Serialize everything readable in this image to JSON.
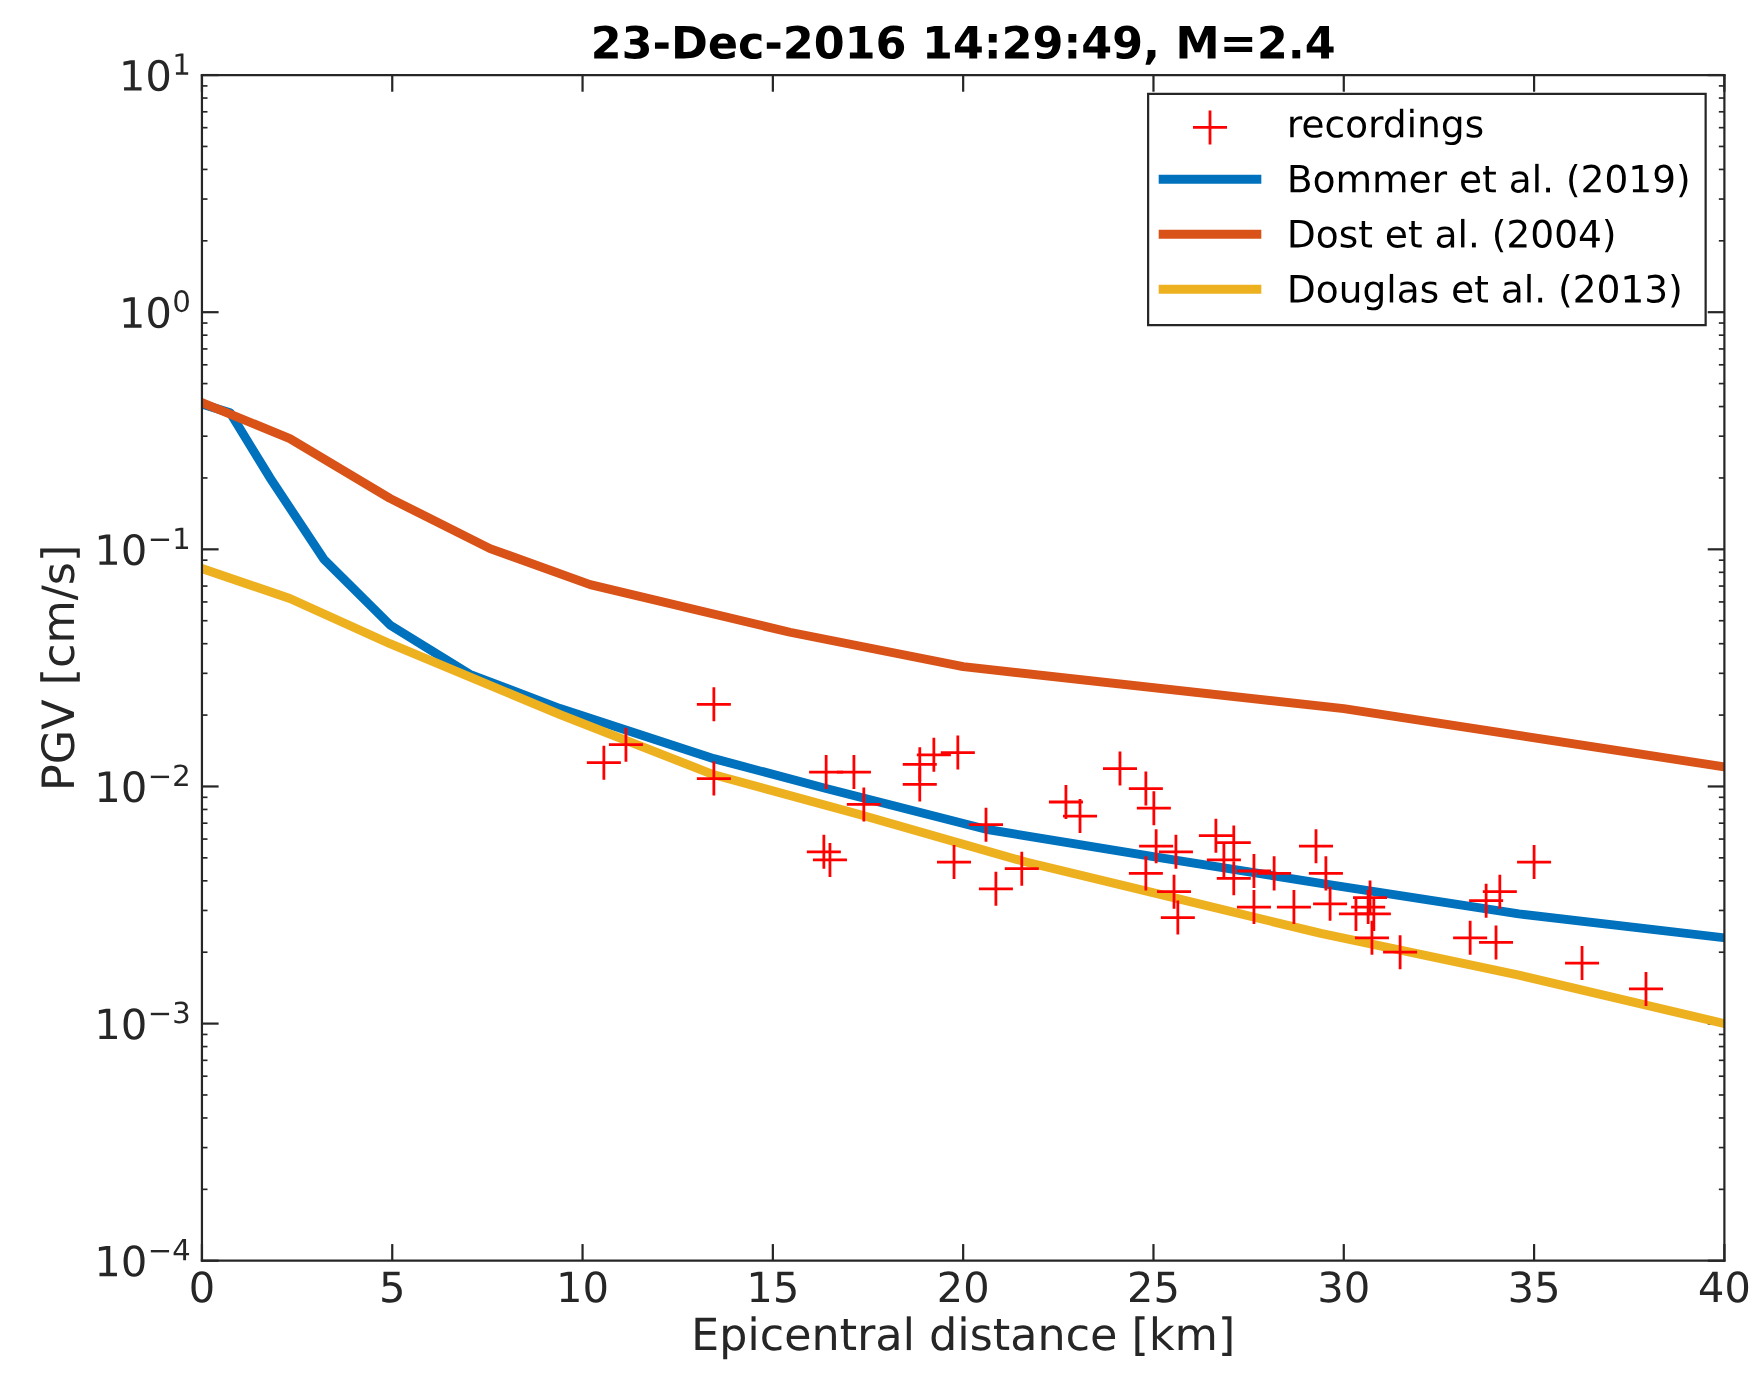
{
  "chart_data": {
    "type": "line",
    "title": "23-Dec-2016 14:29:49, M=2.4",
    "xlabel": "Epicentral distance [km]",
    "ylabel": "PGV [cm/s]",
    "log": "y",
    "xlim": [
      0,
      40
    ],
    "ylim": [
      0.0001,
      10
    ],
    "xticks": [
      0,
      5,
      10,
      15,
      20,
      25,
      30,
      35,
      40
    ],
    "yticks": [
      {
        "value": 0.0001,
        "label": "10$^{−4}$"
      },
      {
        "value": 0.001,
        "label": "10$^{−3}$"
      },
      {
        "value": 0.01,
        "label": "10$^{−2}$"
      },
      {
        "value": 0.1,
        "label": "10$^{−1}$"
      },
      {
        "value": 1,
        "label": "10$^{0}$"
      },
      {
        "value": 10,
        "label": "10$^{1}$"
      }
    ],
    "grid": false,
    "legend": "top right",
    "series": [
      {
        "name": "recordings",
        "type": "scatter",
        "marker": "cross",
        "color": "#ff0000",
        "x": [
          10.56,
          11.14,
          13.45,
          13.45,
          16.4,
          16.34,
          16.5,
          17.13,
          17.39,
          18.86,
          18.86,
          19.23,
          19.86,
          19.76,
          20.6,
          20.86,
          21.54,
          22.7,
          23.07,
          24.12,
          24.8,
          25.01,
          25.07,
          24.8,
          25.59,
          25.54,
          25.64,
          26.64,
          27.11,
          26.85,
          27.11,
          27.64,
          28.17,
          27.64,
          28.69,
          29.27,
          29.53,
          29.64,
          30.32,
          30.64,
          30.69,
          30.79,
          30.74,
          31.48,
          33.32,
          33.74,
          34.1,
          34.0,
          35.0,
          36.26,
          37.94
        ],
        "values": [
          0.0126,
          0.015,
          0.0222,
          0.0108,
          0.0115,
          0.0053,
          0.0049,
          0.0115,
          0.0084,
          0.0102,
          0.0124,
          0.0136,
          0.0139,
          0.0048,
          0.0069,
          0.0037,
          0.0045,
          0.0086,
          0.0075,
          0.0119,
          0.0098,
          0.0081,
          0.0056,
          0.0043,
          0.0053,
          0.0036,
          0.0028,
          0.0062,
          0.0058,
          0.0049,
          0.0041,
          0.0044,
          0.0043,
          0.0031,
          0.0031,
          0.0056,
          0.0043,
          0.0032,
          0.0029,
          0.0031,
          0.0034,
          0.0029,
          0.0023,
          0.002,
          0.0023,
          0.0033,
          0.0036,
          0.0022,
          0.0048,
          0.0018,
          0.0014
        ]
      },
      {
        "name": "Bommer et al. (2019)",
        "color": "#0072bd",
        "x": [
          0,
          0.74,
          1.79,
          3.2,
          4.94,
          7.04,
          9.41,
          13.45,
          16.4,
          20.6,
          25.2,
          29.4,
          34.6,
          40
        ],
        "values": [
          0.41,
          0.377,
          0.2,
          0.091,
          0.048,
          0.0297,
          0.0213,
          0.0131,
          0.0098,
          0.0066,
          0.005,
          0.0039,
          0.0029,
          0.0023
        ]
      },
      {
        "name": "Dost et al. (2004)",
        "color": "#d95319",
        "x": [
          0,
          2.31,
          4.94,
          7.57,
          10.2,
          15.45,
          20,
          30,
          40
        ],
        "values": [
          0.416,
          0.293,
          0.164,
          0.1007,
          0.071,
          0.0447,
          0.032,
          0.0213,
          0.0121
        ]
      },
      {
        "name": "Douglas et al. (2013)",
        "color": "#edb120",
        "x": [
          0,
          2.31,
          4.94,
          9.41,
          13.45,
          17.3,
          21.65,
          25.2,
          29.4,
          34.6,
          40
        ],
        "values": [
          0.083,
          0.062,
          0.04,
          0.0201,
          0.0112,
          0.0076,
          0.0048,
          0.0035,
          0.0024,
          0.0016,
          0.001
        ]
      }
    ]
  }
}
